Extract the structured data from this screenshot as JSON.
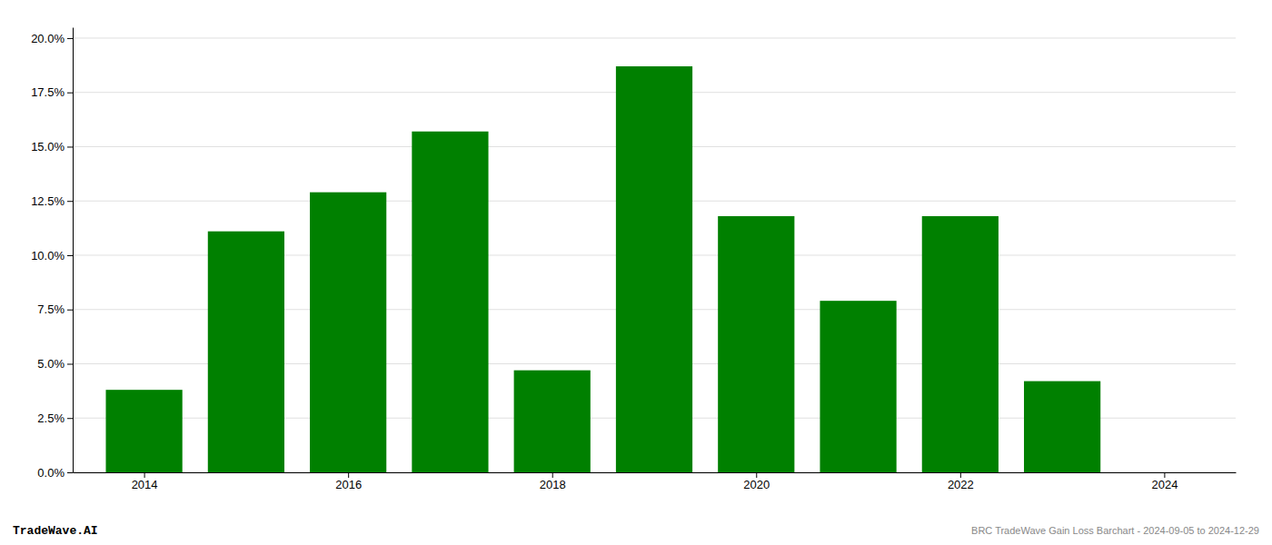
{
  "chart_data": {
    "type": "bar",
    "x": [
      2014,
      2015,
      2016,
      2017,
      2018,
      2019,
      2020,
      2021,
      2022,
      2023
    ],
    "values": [
      0.038,
      0.111,
      0.129,
      0.157,
      0.047,
      0.187,
      0.118,
      0.079,
      0.118,
      0.042
    ],
    "color": "#008000",
    "xlim": [
      2013.3,
      2024.7
    ],
    "xticks": [
      2014,
      2016,
      2018,
      2020,
      2022,
      2024
    ],
    "ylim": [
      0.0,
      0.205
    ],
    "yticks": [
      {
        "value": 0.0,
        "label": "0.0%"
      },
      {
        "value": 0.025,
        "label": "2.5%"
      },
      {
        "value": 0.05,
        "label": "5.0%"
      },
      {
        "value": 0.075,
        "label": "7.5%"
      },
      {
        "value": 0.1,
        "label": "10.0%"
      },
      {
        "value": 0.125,
        "label": "12.5%"
      },
      {
        "value": 0.15,
        "label": "15.0%"
      },
      {
        "value": 0.175,
        "label": "17.5%"
      },
      {
        "value": 0.2,
        "label": "20.0%"
      }
    ],
    "grid": true,
    "annotations": [
      "TradeWave.AI",
      "BRC TradeWave Gain Loss Barchart - 2024-09-05 to 2024-12-29"
    ]
  }
}
